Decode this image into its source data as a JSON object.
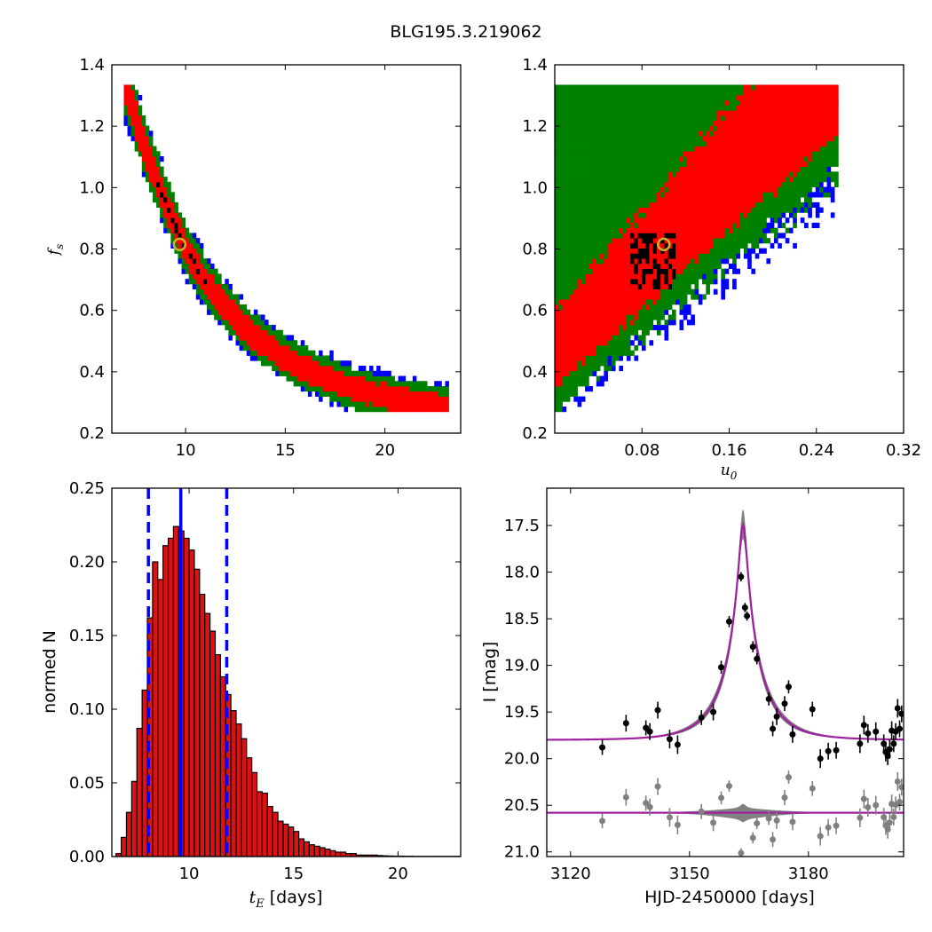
{
  "figure_title": "BLG195.3.219062",
  "colors": {
    "sigma3": "#0000ff",
    "sigma2": "#008000",
    "sigma1": "#ff0000",
    "best": "#000000",
    "marker": "#c8b428",
    "bar": "#dd1111",
    "vline": "#0000ff",
    "model": "#a020a0",
    "band": "#808080",
    "resid": "#808080"
  },
  "chart_data": [
    {
      "id": "fs-tE",
      "type": "heatmap",
      "ylabel": "f_s",
      "xlim": [
        6.3,
        23.8
      ],
      "ylim": [
        0.2,
        1.4
      ],
      "xticks": [
        10,
        15,
        20
      ],
      "yticks": [
        0.2,
        0.4,
        0.6,
        0.8,
        1.0,
        1.2,
        1.4
      ],
      "yticklabels": [
        "0.2",
        "0.4",
        "0.6",
        "0.8",
        "1.0",
        "1.2",
        "1.4"
      ],
      "levels": [
        "black",
        "red",
        "green",
        "blue"
      ],
      "ridge": [
        [
          7.0,
          1.33
        ],
        [
          8.0,
          1.12
        ],
        [
          9.0,
          0.95
        ],
        [
          10.0,
          0.8
        ],
        [
          11.0,
          0.69
        ],
        [
          12.0,
          0.61
        ],
        [
          13.0,
          0.54
        ],
        [
          14.0,
          0.49
        ],
        [
          15.0,
          0.445
        ],
        [
          16.0,
          0.41
        ],
        [
          17.0,
          0.38
        ],
        [
          18.0,
          0.355
        ],
        [
          19.0,
          0.335
        ],
        [
          20.0,
          0.32
        ],
        [
          21.0,
          0.305
        ],
        [
          22.0,
          0.295
        ],
        [
          23.0,
          0.285
        ]
      ],
      "marker": [
        9.7,
        0.815
      ]
    },
    {
      "id": "fs-u0",
      "type": "heatmap",
      "xlabel": "u_0",
      "xlim": [
        0.0,
        0.32
      ],
      "ylim": [
        0.2,
        1.4
      ],
      "xticks": [
        0.08,
        0.16,
        0.24,
        0.32
      ],
      "xticklabels": [
        "0.08",
        "0.16",
        "0.24",
        "0.32"
      ],
      "yticks": [
        0.2,
        0.4,
        0.6,
        0.8,
        1.0,
        1.2,
        1.4
      ],
      "yticklabels": [
        "0.2",
        "0.4",
        "0.6",
        "0.8",
        "1.0",
        "1.2",
        "1.4"
      ],
      "levels": [
        "black",
        "red",
        "green",
        "blue"
      ],
      "marker": [
        0.1,
        0.815
      ]
    },
    {
      "id": "tE-hist",
      "type": "bar",
      "xlabel_math": "t_E",
      "xlabel_text": "[days]",
      "ylabel": "normed N",
      "xlim": [
        6.3,
        23.0
      ],
      "ylim": [
        0.0,
        0.25
      ],
      "xticks": [
        10,
        15,
        20
      ],
      "yticks": [
        0.0,
        0.05,
        0.1,
        0.15,
        0.2,
        0.25
      ],
      "yticklabels": [
        "0.00",
        "0.05",
        "0.10",
        "0.15",
        "0.20",
        "0.25"
      ],
      "bin_start": 6.5,
      "bin_width": 0.25,
      "values": [
        0.002,
        0.013,
        0.03,
        0.051,
        0.087,
        0.113,
        0.162,
        0.2,
        0.188,
        0.211,
        0.216,
        0.224,
        0.221,
        0.216,
        0.208,
        0.195,
        0.178,
        0.165,
        0.153,
        0.137,
        0.122,
        0.11,
        0.099,
        0.09,
        0.08,
        0.067,
        0.057,
        0.044,
        0.043,
        0.034,
        0.03,
        0.024,
        0.022,
        0.02,
        0.017,
        0.012,
        0.01,
        0.008,
        0.007,
        0.006,
        0.005,
        0.004,
        0.003,
        0.003,
        0.002,
        0.002,
        0.001,
        0.001,
        0.001,
        0.001,
        0.0007,
        0.0005,
        0.0004,
        0.0003,
        0.0003,
        0.0002,
        0.0002,
        0.0001,
        0.0001,
        0.0001,
        0.0001,
        0.0001,
        0.0001,
        0.0001,
        0.0001,
        0.0001
      ],
      "median": 9.6,
      "lower": 8.05,
      "upper": 11.8
    },
    {
      "id": "lightcurve",
      "type": "scatter",
      "xlabel": "HJD-2450000 [days]",
      "ylabel": "I [mag]",
      "xlim": [
        3114,
        3204
      ],
      "ylim": [
        21.05,
        17.1
      ],
      "xticks": [
        3120,
        3150,
        3180
      ],
      "yticks": [
        17.5,
        18.0,
        18.5,
        19.0,
        19.5,
        20.0,
        20.5,
        21.0
      ],
      "yticklabels": [
        "17.5",
        "18.0",
        "18.5",
        "19.0",
        "19.5",
        "20.0",
        "20.5",
        "21.0"
      ],
      "model": {
        "t0": 3163.5,
        "tE": 9.7,
        "u0": 0.1,
        "fs": 0.815,
        "baseline": 19.8,
        "resid_offset": 20.58
      },
      "points": [
        [
          3128,
          19.88,
          0.08
        ],
        [
          3134,
          19.62,
          0.09
        ],
        [
          3139,
          19.67,
          0.08
        ],
        [
          3140,
          19.71,
          0.09
        ],
        [
          3142,
          19.48,
          0.09
        ],
        [
          3145,
          19.79,
          0.1
        ],
        [
          3147,
          19.85,
          0.1
        ],
        [
          3153,
          19.56,
          0.08
        ],
        [
          3156,
          19.5,
          0.09
        ],
        [
          3158,
          19.02,
          0.07
        ],
        [
          3160,
          18.53,
          0.06
        ],
        [
          3163,
          18.05,
          0.05
        ],
        [
          3164,
          18.38,
          0.05
        ],
        [
          3164.5,
          18.47,
          0.05
        ],
        [
          3166,
          18.8,
          0.06
        ],
        [
          3167,
          18.93,
          0.06
        ],
        [
          3170,
          19.36,
          0.07
        ],
        [
          3171,
          19.68,
          0.08
        ],
        [
          3172,
          19.55,
          0.09
        ],
        [
          3174,
          19.41,
          0.08
        ],
        [
          3175,
          19.23,
          0.07
        ],
        [
          3176,
          19.74,
          0.09
        ],
        [
          3181,
          19.47,
          0.08
        ],
        [
          3183,
          20.0,
          0.1
        ],
        [
          3185,
          19.92,
          0.09
        ],
        [
          3187,
          19.91,
          0.09
        ],
        [
          3193,
          19.84,
          0.1
        ],
        [
          3194,
          19.64,
          0.1
        ],
        [
          3195,
          19.73,
          0.1
        ],
        [
          3197,
          19.71,
          0.1
        ],
        [
          3199,
          19.84,
          0.1
        ],
        [
          3199.5,
          19.93,
          0.1
        ],
        [
          3200,
          19.97,
          0.1
        ],
        [
          3200.5,
          19.9,
          0.1
        ],
        [
          3201,
          19.7,
          0.1
        ],
        [
          3201.5,
          19.84,
          0.09
        ],
        [
          3202,
          19.71,
          0.09
        ],
        [
          3202.5,
          19.46,
          0.1
        ],
        [
          3203,
          19.68,
          0.09
        ],
        [
          3203.5,
          19.52,
          0.09
        ]
      ]
    }
  ]
}
